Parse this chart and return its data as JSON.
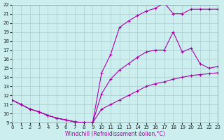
{
  "xlabel": "Windchill (Refroidissement éolien,°C)",
  "xlim": [
    0,
    23
  ],
  "ylim": [
    9,
    22
  ],
  "yticks": [
    9,
    10,
    11,
    12,
    13,
    14,
    15,
    16,
    17,
    18,
    19,
    20,
    21,
    22
  ],
  "xticks": [
    0,
    1,
    2,
    3,
    4,
    5,
    6,
    7,
    8,
    9,
    10,
    11,
    12,
    13,
    14,
    15,
    16,
    17,
    18,
    19,
    20,
    21,
    22,
    23
  ],
  "bg_color": "#cceeee",
  "grid_color": "#aacccc",
  "line_color": "#aa00aa",
  "line1_x": [
    0,
    1,
    2,
    3,
    4,
    5,
    6,
    7,
    8,
    9,
    10,
    11,
    12,
    13,
    14,
    15,
    16,
    17,
    18,
    19,
    20,
    21,
    22,
    23
  ],
  "line1_y": [
    11.5,
    11.0,
    10.5,
    10.2,
    9.8,
    9.5,
    9.3,
    9.1,
    9.0,
    9.0,
    14.5,
    16.5,
    19.5,
    20.2,
    20.8,
    21.3,
    21.6,
    22.2,
    21.0,
    21.0,
    21.5,
    21.5,
    21.5,
    21.5
  ],
  "line2_x": [
    0,
    1,
    2,
    3,
    4,
    5,
    6,
    7,
    8,
    9,
    10,
    11,
    12,
    13,
    14,
    15,
    16,
    17,
    18,
    19,
    20,
    21,
    22,
    23
  ],
  "line2_y": [
    11.5,
    11.0,
    10.5,
    10.2,
    9.8,
    9.5,
    9.3,
    9.1,
    9.0,
    9.0,
    12.2,
    13.8,
    14.8,
    15.5,
    16.2,
    16.8,
    17.0,
    17.0,
    19.0,
    16.8,
    17.2,
    15.5,
    15.0,
    15.2
  ],
  "line3_x": [
    0,
    1,
    2,
    3,
    4,
    5,
    6,
    7,
    8,
    9,
    10,
    11,
    12,
    13,
    14,
    15,
    16,
    17,
    18,
    19,
    20,
    21,
    22,
    23
  ],
  "line3_y": [
    11.5,
    11.0,
    10.5,
    10.2,
    9.8,
    9.5,
    9.3,
    9.1,
    9.0,
    9.0,
    10.5,
    11.0,
    11.5,
    12.0,
    12.5,
    13.0,
    13.3,
    13.5,
    13.8,
    14.0,
    14.2,
    14.3,
    14.4,
    14.5
  ]
}
